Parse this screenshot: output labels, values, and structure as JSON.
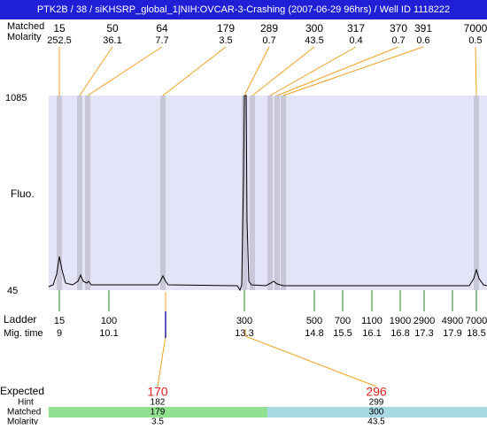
{
  "title": "PTK2B / 38 / siKHSRP_global_1|NIH:OVCAR-3-Crashing (2007-06-29 96hrs) / Well ID 1118222",
  "top_rows": {
    "size_label": "Matched",
    "molarity_label": "Molarity"
  },
  "peaks": [
    {
      "size": 15,
      "molarity": 252.5
    },
    {
      "size": 50,
      "molarity": 36.1
    },
    {
      "size": 64,
      "molarity": 7.7
    },
    {
      "size": 179,
      "molarity": 3.5
    },
    {
      "size": 289,
      "molarity": 0.7
    },
    {
      "size": 300,
      "molarity": 43.5
    },
    {
      "size": 317,
      "molarity": 0.4
    },
    {
      "size": 370,
      "molarity": 0.7
    },
    {
      "size": 391,
      "molarity": 0.6
    },
    {
      "size": 7000,
      "molarity": 0.5
    }
  ],
  "axis": {
    "y_label": "Fluo.",
    "y_max": 1085,
    "y_min": 45
  },
  "ladder": {
    "label": "Ladder",
    "time_label": "Mig. time",
    "items": [
      {
        "size": 15,
        "time": 9
      },
      {
        "size": 100,
        "time": 10.1
      },
      {
        "size": 300,
        "time": 13.3
      },
      {
        "size": 500,
        "time": 14.8
      },
      {
        "size": 700,
        "time": 15.5
      },
      {
        "size": 1100,
        "time": 16.1
      },
      {
        "size": 1900,
        "time": 16.8
      },
      {
        "size": 2900,
        "time": 17.3
      },
      {
        "size": 4900,
        "time": 17.9
      },
      {
        "size": 7000,
        "time": 18.5
      }
    ]
  },
  "expected": {
    "label": "Expected",
    "hint_label": "Hint",
    "matched_label": "Matched",
    "molarity_label": "Molarity",
    "columns": [
      {
        "expected": 170,
        "hint": 182,
        "matched": 179,
        "molarity": 3.5
      },
      {
        "expected": 296,
        "hint": 299,
        "matched": 300,
        "molarity": 43.5
      }
    ]
  }
}
